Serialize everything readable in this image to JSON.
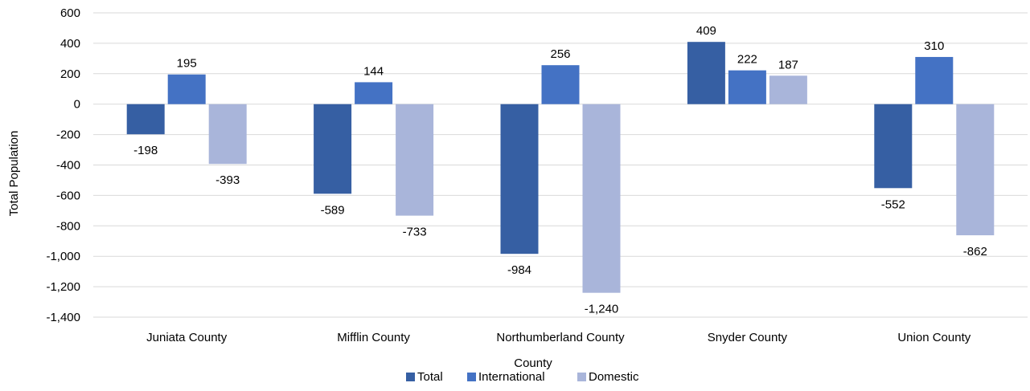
{
  "chart_data": {
    "type": "bar",
    "xlabel": "County",
    "ylabel": "Total Population",
    "ylim": [
      -1400,
      600
    ],
    "ytick_step": 200,
    "yticks": [
      "600",
      "400",
      "200",
      "0",
      "-200",
      "-400",
      "-600",
      "-800",
      "-1,000",
      "-1,200",
      "-1,400"
    ],
    "grid": true,
    "legend_position": "bottom",
    "categories": [
      "Juniata County",
      "Mifflin County",
      "Northumberland County",
      "Snyder County",
      "Union County"
    ],
    "series": [
      {
        "name": "Total",
        "color": "#365fa3",
        "values": [
          -198,
          -589,
          -984,
          409,
          -552
        ],
        "labels": [
          "-198",
          "-589",
          "-984",
          "409",
          "-552"
        ]
      },
      {
        "name": "International",
        "color": "#4472c4",
        "values": [
          195,
          144,
          256,
          222,
          310
        ],
        "labels": [
          "195",
          "144",
          "256",
          "222",
          "310"
        ]
      },
      {
        "name": "Domestic",
        "color": "#a9b5da",
        "values": [
          -393,
          -733,
          -1240,
          187,
          -862
        ],
        "labels": [
          "-393",
          "-733",
          "-1,240",
          "187",
          "-862"
        ]
      }
    ]
  }
}
